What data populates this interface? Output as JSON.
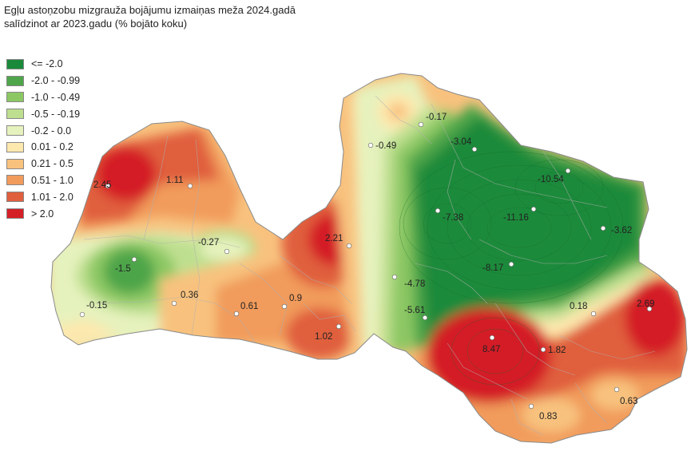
{
  "title": "Egļu astoņzobu mizgrauža bojājumu izmaiņas meža 2024.gadā\nsalīdzinot ar 2023.gadu (% bojāto koku)",
  "legend": [
    {
      "label": "<= -2.0",
      "color": "#1a8a3a"
    },
    {
      "label": "-2.0 - -0.99",
      "color": "#4ea54a"
    },
    {
      "label": "-1.0 - -0.49",
      "color": "#8cc763"
    },
    {
      "label": "-0.5 - -0.19",
      "color": "#bedf8f"
    },
    {
      "label": "-0.2 - 0.0",
      "color": "#e6f2bd"
    },
    {
      "label": "0.01 - 0.2",
      "color": "#fde8ae"
    },
    {
      "label": "0.21 - 0.5",
      "color": "#f8c27e"
    },
    {
      "label": "0.51 - 1.0",
      "color": "#f19b5c"
    },
    {
      "label": "1.01 - 2.0",
      "color": "#e05f3c"
    },
    {
      "label": "> 2.0",
      "color": "#d41f27"
    }
  ],
  "points": [
    {
      "label": "2.45"
    },
    {
      "label": "1.11"
    },
    {
      "label": "-0.27"
    },
    {
      "label": "-1.5"
    },
    {
      "label": "-0.15"
    },
    {
      "label": "0.36"
    },
    {
      "label": "0.61"
    },
    {
      "label": "0.9"
    },
    {
      "label": "1.02"
    },
    {
      "label": "2.21"
    },
    {
      "label": "-0.17"
    },
    {
      "label": "-0.49"
    },
    {
      "label": "-3.04"
    },
    {
      "label": "-10.54"
    },
    {
      "label": "-7.38"
    },
    {
      "label": "-11.16"
    },
    {
      "label": "-3.62"
    },
    {
      "label": "-8.17"
    },
    {
      "label": "-4.78"
    },
    {
      "label": "-5.61"
    },
    {
      "label": "0.18"
    },
    {
      "label": "2.69"
    },
    {
      "label": "8.47"
    },
    {
      "label": "1.82"
    },
    {
      "label": "0.63"
    },
    {
      "label": "0.83"
    }
  ]
}
